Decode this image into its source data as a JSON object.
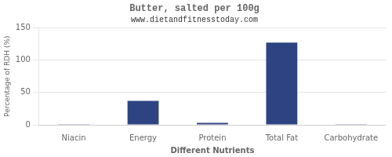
{
  "chart_data": {
    "type": "bar",
    "title": "Butter, salted per 100g",
    "subtitle": "www.dietandfitnesstoday.com",
    "xlabel": "Different Nutrients",
    "ylabel": "Percentage of RDH (%)",
    "categories": [
      "Niacin",
      "Energy",
      "Protein",
      "Total Fat",
      "Carbohydrate"
    ],
    "values": [
      0.3,
      37,
      3,
      127,
      0.2
    ],
    "color": "#2e4482",
    "ylim": [
      0,
      150
    ],
    "yticks": [
      0,
      50,
      100,
      150
    ],
    "grid": true
  }
}
